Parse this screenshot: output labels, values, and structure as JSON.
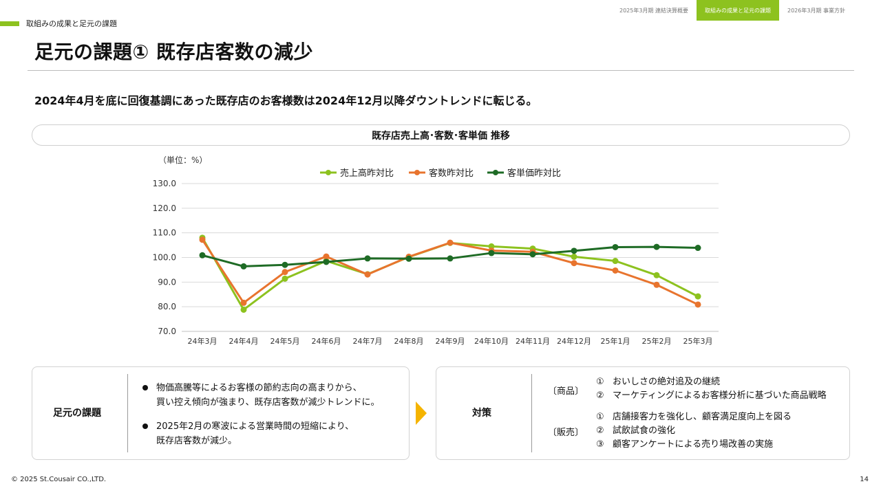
{
  "nav": {
    "tabs": [
      {
        "label": "2025年3月期 連結決算概要"
      },
      {
        "label": "取組みの成果と足元の課題"
      },
      {
        "label": "2026年3月期 事業方針"
      }
    ]
  },
  "section_label": "取組みの成果と足元の課題",
  "page_title": "足元の課題① 既存店客数の減少",
  "lead": "2024年4月を底に回復基調にあった既存店のお客様数は2024年12月以降ダウントレンドに転じる。",
  "chart_header": "既存店売上高･客数･客単価 推移",
  "chart_data": {
    "type": "line",
    "title": "既存店売上高･客数･客単価 推移",
    "unit_label": "（単位：%）",
    "categories": [
      "24年3月",
      "24年4月",
      "24年5月",
      "24年6月",
      "24年7月",
      "24年8月",
      "24年9月",
      "24年10月",
      "24年11月",
      "24年12月",
      "25年1月",
      "25年2月",
      "25年3月"
    ],
    "ylim": [
      70,
      130
    ],
    "yticks": [
      "70.0",
      "80.0",
      "90.0",
      "100.0",
      "110.0",
      "120.0",
      "130.0"
    ],
    "grid": true,
    "legend_position": "top",
    "series": [
      {
        "name": "売上高昨対比",
        "color": "#8dc21f",
        "values": [
          108.0,
          78.8,
          91.4,
          98.6,
          93.2,
          100.2,
          105.9,
          104.5,
          103.6,
          100.3,
          98.6,
          92.8,
          84.2
        ]
      },
      {
        "name": "客数昨対比",
        "color": "#e8742e",
        "values": [
          107.2,
          81.6,
          94.1,
          100.4,
          93.1,
          100.3,
          106.0,
          102.8,
          102.3,
          97.7,
          94.7,
          88.9,
          80.9
        ]
      },
      {
        "name": "客単価昨対比",
        "color": "#1e6b25",
        "values": [
          100.9,
          96.4,
          97.0,
          98.2,
          99.6,
          99.5,
          99.6,
          101.8,
          101.3,
          102.7,
          104.2,
          104.3,
          103.9
        ]
      }
    ]
  },
  "left_panel": {
    "title": "足元の課題",
    "bullets": [
      "物価高騰等によるお客様の節約志向の高まりから、\n買い控え傾向が強まり、既存店客数が減少トレンドに。",
      "2025年2月の寒波による営業時間の短縮により、\n既存店客数が減少。"
    ]
  },
  "right_panel": {
    "title": "対策",
    "groups": [
      {
        "tag": "〔商品〕",
        "items": [
          {
            "num": "①",
            "text": "おいしさの絶対追及の継続"
          },
          {
            "num": "②",
            "text": "マーケティングによるお客様分析に基づいた商品戦略"
          }
        ]
      },
      {
        "tag": "〔販売〕",
        "items": [
          {
            "num": "①",
            "text": "店舗接客力を強化し、顧客満足度向上を図る"
          },
          {
            "num": "②",
            "text": "試飲試食の強化"
          },
          {
            "num": "③",
            "text": "顧客アンケートによる売り場改善の実施"
          }
        ]
      }
    ]
  },
  "colors": {
    "accent": "#8dc21f",
    "arrow": "#f5b400"
  },
  "footer": "© 2025 St.Cousair CO.,LTD.",
  "page_number": "14"
}
